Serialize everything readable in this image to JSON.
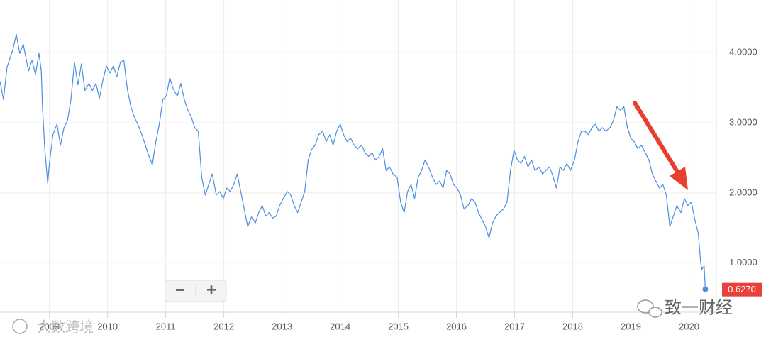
{
  "chart_data": {
    "type": "line",
    "x": [
      2008.15,
      2008.21,
      2008.27,
      2008.37,
      2008.43,
      2008.49,
      2008.55,
      2008.64,
      2008.7,
      2008.76,
      2008.82,
      2008.86,
      2008.88,
      2008.92,
      2008.97,
      2009.0,
      2009.06,
      2009.13,
      2009.19,
      2009.25,
      2009.31,
      2009.37,
      2009.43,
      2009.49,
      2009.55,
      2009.61,
      2009.68,
      2009.74,
      2009.8,
      2009.86,
      2009.92,
      2009.98,
      2010.04,
      2010.1,
      2010.16,
      2010.22,
      2010.28,
      2010.34,
      2010.4,
      2010.46,
      2010.52,
      2010.59,
      2010.65,
      2010.71,
      2010.77,
      2010.83,
      2010.89,
      2010.95,
      2011.01,
      2011.07,
      2011.13,
      2011.2,
      2011.26,
      2011.32,
      2011.38,
      2011.44,
      2011.5,
      2011.56,
      2011.62,
      2011.68,
      2011.74,
      2011.8,
      2011.87,
      2011.93,
      2011.99,
      2012.05,
      2012.11,
      2012.17,
      2012.23,
      2012.29,
      2012.35,
      2012.41,
      2012.48,
      2012.54,
      2012.6,
      2012.66,
      2012.72,
      2012.78,
      2012.84,
      2012.9,
      2012.96,
      2013.02,
      2013.09,
      2013.15,
      2013.21,
      2013.27,
      2013.33,
      2013.39,
      2013.45,
      2013.51,
      2013.57,
      2013.63,
      2013.7,
      2013.76,
      2013.82,
      2013.88,
      2013.94,
      2014.0,
      2014.06,
      2014.12,
      2014.18,
      2014.24,
      2014.3,
      2014.37,
      2014.43,
      2014.49,
      2014.55,
      2014.61,
      2014.67,
      2014.73,
      2014.79,
      2014.85,
      2014.91,
      2014.98,
      2015.04,
      2015.1,
      2015.16,
      2015.22,
      2015.28,
      2015.34,
      2015.4,
      2015.46,
      2015.52,
      2015.59,
      2015.65,
      2015.71,
      2015.77,
      2015.83,
      2015.89,
      2015.95,
      2016.01,
      2016.07,
      2016.13,
      2016.2,
      2016.26,
      2016.32,
      2016.38,
      2016.44,
      2016.5,
      2016.56,
      2016.62,
      2016.68,
      2016.74,
      2016.81,
      2016.87,
      2016.93,
      2016.99,
      2017.05,
      2017.11,
      2017.17,
      2017.23,
      2017.29,
      2017.35,
      2017.42,
      2017.48,
      2017.54,
      2017.6,
      2017.66,
      2017.72,
      2017.78,
      2017.84,
      2017.9,
      2017.96,
      2018.03,
      2018.09,
      2018.15,
      2018.21,
      2018.27,
      2018.33,
      2018.39,
      2018.45,
      2018.51,
      2018.57,
      2018.64,
      2018.7,
      2018.76,
      2018.82,
      2018.88,
      2018.94,
      2019.0,
      2019.06,
      2019.12,
      2019.18,
      2019.25,
      2019.31,
      2019.37,
      2019.43,
      2019.49,
      2019.55,
      2019.61,
      2019.67,
      2019.73,
      2019.79,
      2019.86,
      2019.92,
      2019.98,
      2020.04,
      2020.1,
      2020.16,
      2020.2,
      2020.22,
      2020.26,
      2020.28
    ],
    "series": [
      {
        "color": "#4a8fe0",
        "values": [
          3.59,
          3.33,
          3.79,
          4.04,
          4.26,
          3.99,
          4.12,
          3.74,
          3.89,
          3.69,
          3.99,
          3.74,
          3.23,
          2.63,
          2.14,
          2.42,
          2.83,
          2.98,
          2.68,
          2.93,
          3.03,
          3.33,
          3.86,
          3.54,
          3.84,
          3.46,
          3.56,
          3.46,
          3.56,
          3.35,
          3.61,
          3.81,
          3.71,
          3.81,
          3.66,
          3.86,
          3.89,
          3.48,
          3.23,
          3.08,
          2.98,
          2.83,
          2.68,
          2.53,
          2.4,
          2.73,
          2.98,
          3.33,
          3.38,
          3.64,
          3.48,
          3.38,
          3.56,
          3.33,
          3.18,
          3.08,
          2.93,
          2.88,
          2.22,
          1.97,
          2.12,
          2.27,
          1.97,
          2.02,
          1.92,
          2.07,
          2.02,
          2.12,
          2.27,
          2.02,
          1.77,
          1.52,
          1.67,
          1.57,
          1.72,
          1.82,
          1.67,
          1.72,
          1.64,
          1.67,
          1.82,
          1.92,
          2.02,
          1.97,
          1.82,
          1.72,
          1.87,
          2.02,
          2.47,
          2.62,
          2.68,
          2.83,
          2.88,
          2.73,
          2.83,
          2.68,
          2.88,
          2.98,
          2.83,
          2.73,
          2.78,
          2.68,
          2.63,
          2.68,
          2.57,
          2.52,
          2.57,
          2.47,
          2.52,
          2.63,
          2.32,
          2.37,
          2.27,
          2.22,
          1.87,
          1.72,
          2.02,
          2.12,
          1.92,
          2.22,
          2.32,
          2.47,
          2.37,
          2.22,
          2.12,
          2.17,
          2.07,
          2.32,
          2.27,
          2.12,
          2.07,
          1.97,
          1.77,
          1.82,
          1.92,
          1.87,
          1.72,
          1.62,
          1.52,
          1.36,
          1.57,
          1.67,
          1.72,
          1.77,
          1.87,
          2.32,
          2.61,
          2.47,
          2.42,
          2.52,
          2.37,
          2.47,
          2.32,
          2.37,
          2.27,
          2.32,
          2.37,
          2.24,
          2.07,
          2.37,
          2.32,
          2.42,
          2.32,
          2.47,
          2.73,
          2.88,
          2.88,
          2.83,
          2.93,
          2.98,
          2.88,
          2.93,
          2.88,
          2.93,
          3.03,
          3.23,
          3.18,
          3.23,
          2.93,
          2.78,
          2.73,
          2.63,
          2.68,
          2.57,
          2.47,
          2.27,
          2.17,
          2.07,
          2.12,
          1.97,
          1.52,
          1.67,
          1.82,
          1.72,
          1.92,
          1.82,
          1.87,
          1.62,
          1.42,
          1.01,
          0.91,
          0.96,
          0.627
        ]
      }
    ],
    "current_value": {
      "value": 0.627,
      "label": "0.6270",
      "color": "#e8403a"
    },
    "xlim": [
      2008.15,
      2020.47
    ],
    "ylim": [
      0.3,
      4.75
    ],
    "xticks": [
      2009,
      2010,
      2011,
      2012,
      2013,
      2014,
      2015,
      2016,
      2017,
      2018,
      2019,
      2020
    ],
    "yticks": [
      {
        "value": 1,
        "label": "1.0000"
      },
      {
        "value": 2,
        "label": "2.0000"
      },
      {
        "value": 3,
        "label": "3.0000"
      },
      {
        "value": 4,
        "label": "4.0000"
      }
    ],
    "grid": true
  },
  "controls": {
    "zoom_out": "−",
    "zoom_in": "+"
  },
  "watermarks": [
    "大数跨境",
    "致一财经"
  ]
}
